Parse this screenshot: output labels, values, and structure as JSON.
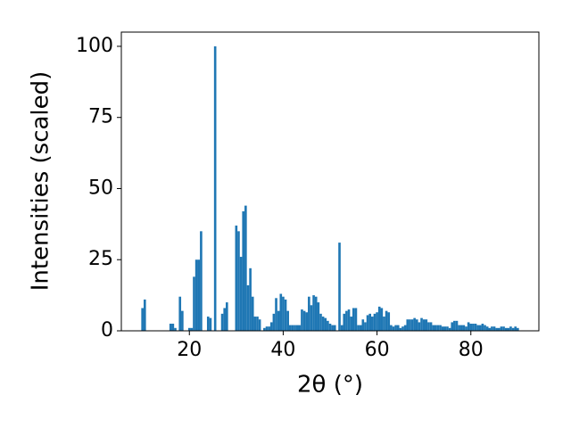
{
  "chart_data": {
    "type": "bar",
    "xlabel": "2θ (°)",
    "ylabel": "Intensities (scaled)",
    "color": "#1f77b4",
    "grid": false,
    "xlim": [
      5.5,
      94.5
    ],
    "ylim": [
      0,
      105
    ],
    "xticks": [
      20,
      40,
      60,
      80
    ],
    "yticks": [
      0,
      25,
      50,
      75,
      100
    ],
    "x": [
      10,
      10.5,
      16,
      16.5,
      17,
      18,
      18.5,
      20,
      20.5,
      21,
      21.5,
      22,
      22.5,
      24,
      24.5,
      25.5,
      27,
      27.5,
      28,
      30,
      30.5,
      31,
      31.5,
      32,
      32.5,
      33,
      33.5,
      34,
      34.5,
      35,
      36,
      36.5,
      37,
      37.5,
      38,
      38.5,
      39,
      39.5,
      40,
      40.5,
      41,
      41.5,
      42,
      42.5,
      43,
      43.5,
      44,
      44.5,
      45,
      45.5,
      46,
      46.5,
      47,
      47.5,
      48,
      48.5,
      49,
      49.5,
      50,
      50.5,
      51,
      52,
      52.5,
      53,
      53.5,
      54,
      54.5,
      55,
      55.5,
      56,
      56.5,
      57,
      57.5,
      58,
      58.5,
      59,
      59.5,
      60,
      60.5,
      61,
      61.5,
      62,
      62.5,
      63,
      63.5,
      64,
      64.5,
      65,
      65.5,
      66,
      66.5,
      67,
      67.5,
      68,
      68.5,
      69,
      69.5,
      70,
      70.5,
      71,
      71.5,
      72,
      72.5,
      73,
      73.5,
      74,
      74.5,
      75,
      75.5,
      76,
      76.5,
      77,
      77.5,
      78,
      78.5,
      79,
      79.5,
      80,
      80.5,
      81,
      81.5,
      82,
      82.5,
      83,
      83.5,
      84,
      84.5,
      85,
      85.5,
      86,
      86.5,
      87,
      87.5,
      88,
      88.5,
      89,
      89.5,
      90
    ],
    "values": [
      8,
      11,
      2.5,
      2.5,
      1,
      12,
      7,
      1,
      1,
      19,
      25,
      25,
      35,
      5,
      4.5,
      100,
      6,
      8,
      10,
      37,
      35,
      26,
      42,
      44,
      16,
      22,
      12,
      5,
      5,
      4,
      1,
      1.5,
      1.5,
      3,
      6,
      11.5,
      7,
      13,
      12,
      11,
      7,
      2,
      2,
      2,
      2,
      2,
      7.5,
      7,
      6.5,
      12,
      9,
      12.5,
      12,
      10,
      6,
      5,
      4.5,
      3.5,
      2.5,
      2,
      2,
      31,
      2,
      6,
      7,
      7.5,
      5,
      8,
      8,
      2,
      2,
      4,
      3,
      5.5,
      6,
      5,
      6,
      6.5,
      8.5,
      8,
      5,
      7,
      6.5,
      2,
      1.5,
      2,
      2,
      1,
      1.5,
      2,
      4,
      4,
      4,
      4.5,
      4,
      3,
      4.5,
      4,
      4,
      3,
      3,
      2,
      2,
      2,
      2,
      1.5,
      1.5,
      1.5,
      1,
      3,
      3.5,
      3.5,
      2,
      2,
      2,
      1.5,
      3,
      2.5,
      2.5,
      2.5,
      2,
      2,
      2.5,
      2,
      1.5,
      1,
      1.5,
      1.5,
      1,
      1,
      1.5,
      1.5,
      1,
      1,
      1.5,
      1,
      1.5,
      1
    ]
  }
}
